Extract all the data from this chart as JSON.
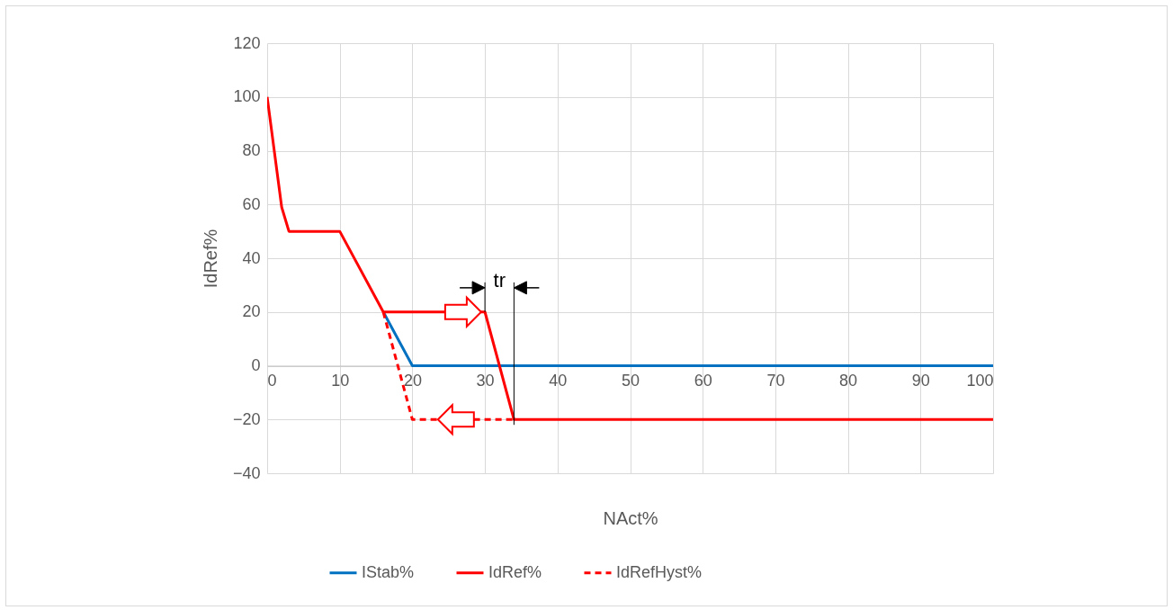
{
  "chart_data": {
    "type": "line",
    "xlabel": "NAct%",
    "ylabel": "IdRef%",
    "xlim": [
      0,
      100
    ],
    "xticks": [
      0,
      10,
      20,
      30,
      40,
      50,
      60,
      70,
      80,
      90,
      100
    ],
    "ylim": [
      -40,
      120
    ],
    "yticks": [
      -40,
      -20,
      0,
      20,
      40,
      60,
      80,
      100,
      120
    ],
    "grid": true,
    "legend": "bottom",
    "marker": "none",
    "annotations": [
      "tr"
    ],
    "series": [
      {
        "name": "IStab%",
        "color": "#0070c0",
        "line_style": "solid",
        "x": [
          16,
          20,
          100
        ],
        "values": [
          20,
          0,
          0
        ]
      },
      {
        "name": "IdRef%",
        "color": "#ff0000",
        "line_style": "solid",
        "x": [
          0,
          2,
          3,
          10,
          16,
          30,
          34,
          100
        ],
        "values": [
          100,
          59,
          50,
          50,
          20,
          20,
          -20,
          -20
        ]
      },
      {
        "name": "IdRefHyst%",
        "color": "#ff0000",
        "line_style": "dashed",
        "x": [
          16,
          20,
          34
        ],
        "values": [
          20,
          -20,
          -20
        ]
      }
    ]
  }
}
